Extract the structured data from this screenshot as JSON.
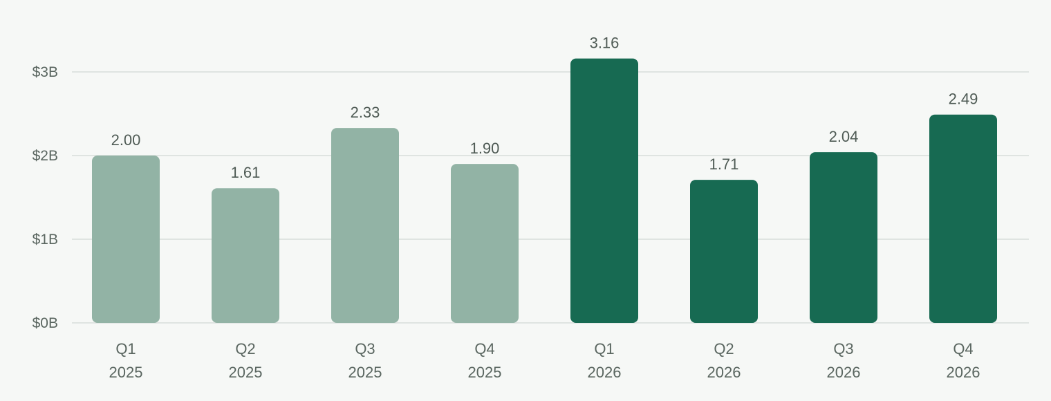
{
  "chart_data": {
    "type": "bar",
    "title": "",
    "xlabel": "",
    "ylabel": "",
    "ylim": [
      0,
      3.0
    ],
    "grid": true,
    "yticks": [
      {
        "value": 0,
        "label": "$0B"
      },
      {
        "value": 1,
        "label": "$1B"
      },
      {
        "value": 2,
        "label": "$2B"
      },
      {
        "value": 3,
        "label": "$3B"
      }
    ],
    "categories": [
      {
        "quarter": "Q1",
        "year": "2025"
      },
      {
        "quarter": "Q2",
        "year": "2025"
      },
      {
        "quarter": "Q3",
        "year": "2025"
      },
      {
        "quarter": "Q4",
        "year": "2025"
      },
      {
        "quarter": "Q1",
        "year": "2026"
      },
      {
        "quarter": "Q2",
        "year": "2026"
      },
      {
        "quarter": "Q3",
        "year": "2026"
      },
      {
        "quarter": "Q4",
        "year": "2026"
      }
    ],
    "values": [
      2.0,
      1.61,
      2.33,
      1.9,
      3.16,
      1.71,
      2.04,
      2.49
    ],
    "value_labels": [
      "2.00",
      "1.61",
      "2.33",
      "1.90",
      "3.16",
      "1.71",
      "2.04",
      "2.49"
    ],
    "colors": {
      "2025": "#92b3a5",
      "2026": "#176a52"
    }
  }
}
